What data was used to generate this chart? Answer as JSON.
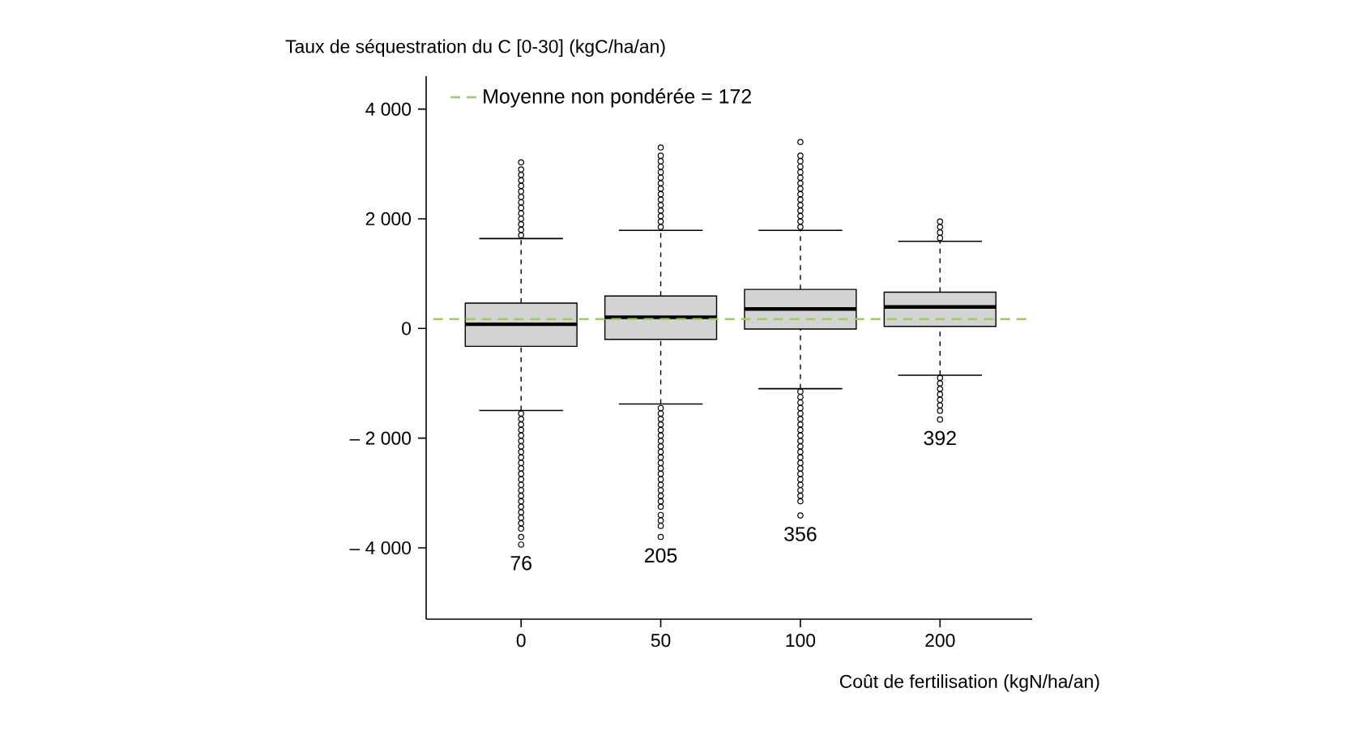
{
  "chart_data": {
    "type": "box",
    "ylabel": "Taux de séquestration du C [0-30] (kgC/ha/an)",
    "xlabel": "Coût de fertilisation (kgN/ha/an)",
    "categories": [
      "0",
      "50",
      "100",
      "200"
    ],
    "color": "#d3d3d3",
    "boxes": [
      {
        "low": -1495,
        "q1": -326,
        "median": 76,
        "q3": 463,
        "high": 1640,
        "outliers": [
          1700,
          1800,
          1900,
          2000,
          2100,
          2200,
          2300,
          2400,
          2500,
          2600,
          2700,
          2800,
          2900,
          3030,
          -1550,
          -1650,
          -1750,
          -1850,
          -1950,
          -2050,
          -2150,
          -2250,
          -2350,
          -2450,
          -2550,
          -2650,
          -2750,
          -2850,
          -2950,
          -3050,
          -3150,
          -3250,
          -3350,
          -3450,
          -3550,
          -3650,
          -3800,
          -3940
        ]
      },
      {
        "low": -1377,
        "q1": -199,
        "median": 205,
        "q3": 593,
        "high": 1790,
        "outliers": [
          1850,
          1950,
          2050,
          2150,
          2250,
          2350,
          2450,
          2550,
          2650,
          2750,
          2850,
          2950,
          3050,
          3150,
          3300,
          -1450,
          -1550,
          -1650,
          -1750,
          -1850,
          -1950,
          -2050,
          -2150,
          -2250,
          -2350,
          -2450,
          -2550,
          -2650,
          -2750,
          -2850,
          -2950,
          -3050,
          -3150,
          -3250,
          -3400,
          -3500,
          -3600,
          -3800
        ]
      },
      {
        "low": -1098,
        "q1": -10,
        "median": 356,
        "q3": 712,
        "high": 1790,
        "outliers": [
          1850,
          1950,
          2050,
          2150,
          2250,
          2350,
          2450,
          2550,
          2650,
          2750,
          2850,
          2950,
          3050,
          3150,
          3400,
          -1150,
          -1250,
          -1350,
          -1450,
          -1550,
          -1650,
          -1750,
          -1850,
          -1950,
          -2050,
          -2150,
          -2250,
          -2350,
          -2450,
          -2550,
          -2650,
          -2750,
          -2850,
          -2950,
          -3050,
          -3150,
          -3410
        ]
      },
      {
        "low": -852,
        "q1": 39,
        "median": 392,
        "q3": 662,
        "high": 1590,
        "outliers": [
          1650,
          1750,
          1850,
          1950,
          -900,
          -1000,
          -1100,
          -1200,
          -1300,
          -1400,
          -1500,
          -1660
        ]
      }
    ],
    "ylim": [
      -5300,
      4600
    ],
    "yticks": [
      {
        "value": 4000,
        "label": "4 000"
      },
      {
        "value": 2000,
        "label": "2 000"
      },
      0,
      {
        "value": -2000,
        "label": "– 2 000"
      },
      {
        "value": -4000,
        "label": "– 4 000"
      }
    ],
    "ref_lines": [
      {
        "axis": "y",
        "value": 172,
        "label": "Moyenne non pondérée = 172",
        "color": "#9ccc6a",
        "line_style": "dashed"
      }
    ],
    "legend": "top left",
    "annotations": [
      "76",
      "205",
      "356",
      "392"
    ]
  }
}
